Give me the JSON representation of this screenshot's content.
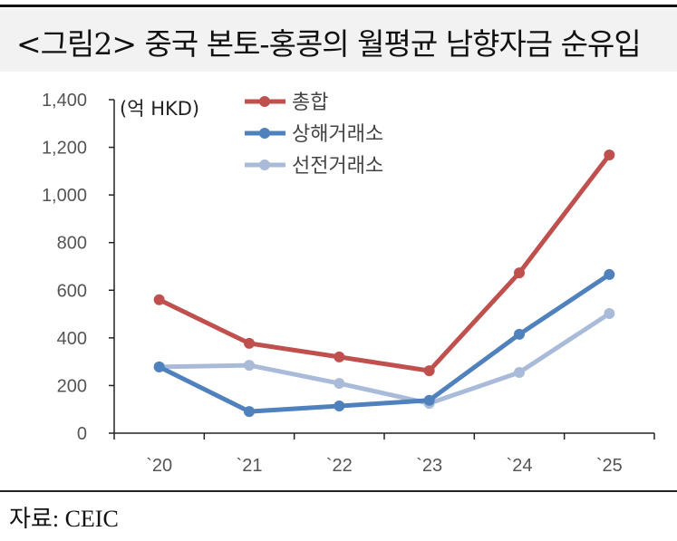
{
  "title": "<그림2> 중국 본토-홍콩의 월평균 남향자금 순유입",
  "source": "자료: CEIC",
  "chart_data": {
    "type": "line",
    "title": "<그림2> 중국 본토-홍콩의 월평균 남향자금 순유입",
    "unit_label": "(억 HKD)",
    "categories": [
      "`20",
      "`21",
      "`22",
      "`23",
      "`24",
      "`25"
    ],
    "ylim": [
      0,
      1400
    ],
    "yticks": [
      0,
      200,
      400,
      600,
      800,
      1000,
      1200,
      1400
    ],
    "ytick_labels": [
      "0",
      "200",
      "400",
      "600",
      "800",
      "1,000",
      "1,200",
      "1,400"
    ],
    "grid": false,
    "legend_position": "top-left",
    "series": [
      {
        "name": "총합",
        "color": "#c0504d",
        "values": [
          560,
          377,
          320,
          262,
          673,
          1168
        ]
      },
      {
        "name": "상해거래소",
        "color": "#4f81bd",
        "values": [
          278,
          91,
          114,
          138,
          415,
          666
        ]
      },
      {
        "name": "선전거래소",
        "color": "#a9bbd9",
        "values": [
          278,
          285,
          209,
          125,
          255,
          502
        ]
      }
    ]
  }
}
